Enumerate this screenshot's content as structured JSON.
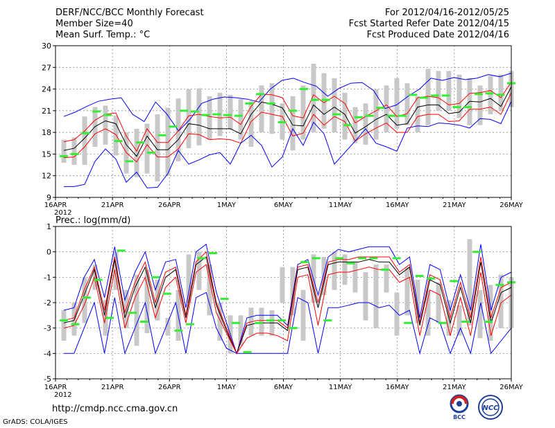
{
  "header": {
    "left": [
      "DERF/NCC/BCC Monthly Forecast",
      "Member Size=40",
      "Mean Surf. Temp.: °C"
    ],
    "right": [
      "For 2012/04/16-2012/05/25",
      "Fcst Started Refer Date 2012/04/15",
      "Fcst Produced Date 2012/04/16"
    ]
  },
  "footer": {
    "url": "http://cmdp.ncc.cma.gov.cn",
    "credit": "GrADS: COLA/IGES"
  },
  "logos": {
    "bcc": "BCC",
    "ncc": "NCC"
  },
  "colors": {
    "envelope": "#0000ff",
    "spread": "#ff0000",
    "mean": "#000000",
    "obs": "#33ee33",
    "box": "#c8c8c8"
  },
  "chart_data": [
    {
      "type": "line",
      "title": "Mean Surf. Temp.: °C",
      "x_ticks": [
        "16APR",
        "21APR",
        "26APR",
        "1MAY",
        "6MAY",
        "11MAY",
        "16MAY",
        "21MAY",
        "26MAY"
      ],
      "x_sublabel": "2012",
      "ylim": [
        9,
        30
      ],
      "y_ticks": [
        9,
        12,
        15,
        18,
        21,
        24,
        27,
        30
      ],
      "series": [
        {
          "name": "max",
          "values": [
            20.2,
            20.8,
            21.6,
            22.3,
            22.6,
            22.8,
            20.5,
            19.5,
            22.2,
            20.5,
            18.2,
            19.8,
            22.0,
            22.6,
            22.9,
            22.8,
            22.6,
            22.2,
            24.0,
            25.2,
            25.5,
            24.9,
            24.4,
            23.0,
            24.1,
            24.8,
            24.9,
            23.8,
            21.3,
            21.8,
            23.0,
            24.0,
            25.5,
            25.2,
            25.6,
            25.3,
            25.5,
            26.0,
            25.7,
            26.2
          ]
        },
        {
          "name": "upper",
          "values": [
            16.7,
            17.0,
            18.2,
            19.7,
            20.5,
            20.7,
            17.5,
            15.4,
            18.5,
            16.6,
            16.6,
            18.2,
            20.3,
            20.5,
            20.2,
            20.0,
            20.1,
            19.1,
            21.6,
            23.3,
            23.2,
            22.8,
            20.3,
            20.0,
            23.2,
            22.1,
            23.0,
            22.0,
            19.3,
            20.2,
            21.0,
            21.8,
            20.2,
            20.6,
            22.8,
            23.0,
            22.8,
            21.8,
            22.0,
            23.4,
            23.5,
            23.8,
            22.8,
            25.0
          ]
        },
        {
          "name": "mean",
          "values": [
            15.5,
            15.8,
            17.2,
            18.8,
            19.6,
            19.2,
            16.3,
            14.7,
            17.5,
            15.6,
            15.6,
            17.0,
            19.2,
            19.0,
            18.5,
            18.5,
            18.5,
            17.8,
            20.5,
            22.2,
            21.9,
            21.4,
            19.0,
            18.9,
            21.8,
            20.5,
            21.5,
            20.5,
            17.9,
            18.8,
            19.8,
            20.5,
            19.0,
            19.2,
            21.5,
            21.8,
            21.8,
            20.6,
            20.8,
            22.3,
            22.2,
            22.7,
            21.6,
            24.3
          ]
        },
        {
          "name": "lower",
          "values": [
            14.5,
            14.6,
            16.0,
            17.8,
            18.5,
            17.7,
            15.2,
            13.9,
            16.3,
            14.6,
            14.6,
            15.7,
            17.8,
            17.7,
            17.0,
            17.1,
            17.0,
            16.5,
            19.5,
            20.8,
            20.5,
            20.2,
            17.5,
            17.9,
            20.5,
            19.0,
            20.2,
            19.5,
            16.8,
            17.8,
            18.6,
            19.3,
            18.0,
            18.0,
            20.2,
            20.5,
            20.5,
            19.5,
            19.6,
            21.2,
            21.2,
            21.5,
            20.5,
            23.5
          ]
        },
        {
          "name": "min",
          "values": [
            10.5,
            10.5,
            10.8,
            14.0,
            15.7,
            14.3,
            11.1,
            12.5,
            10.3,
            10.4,
            12.3,
            15.5,
            13.6,
            14.2,
            14.9,
            15.2,
            13.6,
            16.5,
            17.6,
            16.2,
            13.2,
            14.6,
            18.5,
            16.2,
            19.4,
            17.8,
            13.6,
            15.2,
            16.8,
            18.5,
            16.5,
            16.0,
            15.4,
            18.6,
            18.9,
            18.8,
            19.3,
            19.2,
            19.0,
            18.6,
            19.9,
            19.8,
            19.2,
            22.3
          ]
        },
        {
          "name": "observed",
          "values": [
            14.7,
            15.0,
            17.9,
            20.9,
            20.4,
            16.8,
            14.0,
            16.6,
            15.2,
            17.6,
            18.8,
            21.0,
            20.9,
            20.4,
            20.5,
            20.4,
            20.3,
            22.0,
            23.3,
            22.0,
            19.4,
            21.0,
            24.0,
            22.5,
            22.5,
            20.5,
            19.0,
            20.1,
            20.3,
            21.4,
            20.3,
            20.3,
            23.2,
            22.8,
            23.1,
            23.1,
            21.5,
            21.5,
            23.3,
            23.4,
            23.2,
            24.8
          ]
        }
      ],
      "boxes": [
        [
          13.8,
          17.0
        ],
        [
          13.5,
          17.3
        ],
        [
          13.5,
          20.2
        ],
        [
          16.0,
          21.5
        ],
        [
          16.3,
          21.7
        ],
        [
          14.8,
          20.3
        ],
        [
          12.3,
          18.0
        ],
        [
          11.8,
          18.5
        ],
        [
          12.3,
          19.2
        ],
        [
          11.2,
          20.5
        ],
        [
          12.0,
          21.4
        ],
        [
          14.0,
          22.7
        ],
        [
          15.8,
          24.0
        ],
        [
          16.2,
          24.1
        ],
        [
          17.0,
          23.0
        ],
        [
          17.5,
          23.5
        ],
        [
          18.4,
          23.2
        ],
        [
          17.0,
          22.6
        ],
        [
          16.0,
          22.3
        ],
        [
          18.0,
          24.5
        ],
        [
          17.8,
          24.8
        ],
        [
          17.0,
          22.0
        ],
        [
          15.5,
          23.0
        ],
        [
          17.0,
          24.5
        ],
        [
          18.0,
          27.5
        ],
        [
          18.5,
          26.2
        ],
        [
          18.0,
          25.5
        ],
        [
          17.0,
          23.5
        ],
        [
          16.5,
          21.5
        ],
        [
          16.3,
          22.0
        ],
        [
          17.0,
          24.0
        ],
        [
          18.0,
          24.5
        ],
        [
          18.5,
          25.5
        ],
        [
          19.0,
          24.8
        ],
        [
          18.0,
          23.0
        ],
        [
          19.0,
          26.8
        ],
        [
          21.0,
          26.5
        ],
        [
          21.0,
          26.5
        ],
        [
          20.0,
          26.0
        ],
        [
          19.0,
          25.5
        ],
        [
          19.0,
          24.5
        ],
        [
          20.5,
          25.8
        ],
        [
          21.0,
          26.0
        ],
        [
          21.5,
          26.5
        ]
      ]
    },
    {
      "type": "line",
      "title": "Prec.: log(mm/d)",
      "x_ticks": [
        "16APR",
        "21APR",
        "26APR",
        "1MAY",
        "6MAY",
        "11MAY",
        "16MAY",
        "21MAY",
        "26MAY"
      ],
      "x_sublabel": "2012",
      "ylim": [
        -5,
        1
      ],
      "y_ticks": [
        -5,
        -4,
        -3,
        -2,
        -1,
        0,
        1
      ],
      "series": [
        {
          "name": "max",
          "values": [
            -2.3,
            -2.2,
            -1.0,
            -0.3,
            -1.8,
            0.2,
            -1.9,
            -0.8,
            0.0,
            -1.5,
            -0.4,
            -0.3,
            -2.2,
            0.0,
            0.3,
            -1.6,
            -2.8,
            -4.0,
            -2.6,
            -2.5,
            -2.5,
            -2.5,
            -2.9,
            -0.5,
            -0.3,
            -1.7,
            -0.2,
            0.1,
            0.0,
            0.1,
            0.2,
            0.2,
            0.2,
            -0.5,
            -0.2,
            -2.6,
            -0.5,
            -0.7,
            -2.3,
            -0.9,
            -2.3,
            0.3,
            -2.3,
            -1.0,
            -0.8
          ]
        },
        {
          "name": "upper",
          "values": [
            -2.7,
            -2.6,
            -1.5,
            -0.6,
            -2.3,
            -0.2,
            -2.4,
            -1.2,
            -0.4,
            -2.0,
            -0.8,
            -0.6,
            -2.5,
            -0.4,
            0.0,
            -2.0,
            -3.0,
            -4.0,
            -2.8,
            -2.7,
            -2.7,
            -2.7,
            -3.0,
            -0.6,
            -0.5,
            -2.0,
            -0.4,
            -0.3,
            -0.3,
            -0.2,
            -0.2,
            -0.2,
            -0.2,
            -0.8,
            -0.5,
            -2.8,
            -0.9,
            -1.1,
            -2.6,
            -1.2,
            -2.6,
            -0.2,
            -2.6,
            -1.4,
            -1.2
          ]
        },
        {
          "name": "mean",
          "values": [
            -2.8,
            -2.7,
            -1.7,
            -0.7,
            -2.5,
            -0.3,
            -2.6,
            -1.4,
            -0.6,
            -2.2,
            -1.0,
            -0.7,
            -2.6,
            -0.5,
            -0.2,
            -2.1,
            -3.1,
            -4.0,
            -2.9,
            -2.8,
            -2.8,
            -2.8,
            -3.1,
            -0.7,
            -0.6,
            -2.2,
            -0.5,
            -0.4,
            -0.4,
            -0.4,
            -0.3,
            -0.4,
            -0.4,
            -0.9,
            -0.6,
            -2.9,
            -1.1,
            -1.3,
            -2.8,
            -1.4,
            -2.8,
            -0.4,
            -2.8,
            -1.6,
            -1.4
          ]
        },
        {
          "name": "lower",
          "values": [
            -3.0,
            -2.9,
            -2.1,
            -1.0,
            -2.8,
            -0.7,
            -3.0,
            -1.8,
            -1.0,
            -2.6,
            -1.4,
            -1.0,
            -2.8,
            -0.8,
            -0.5,
            -2.4,
            -3.2,
            -4.0,
            -3.4,
            -3.2,
            -3.2,
            -3.3,
            -3.5,
            -1.0,
            -0.9,
            -2.9,
            -0.9,
            -0.8,
            -0.8,
            -0.7,
            -0.6,
            -0.7,
            -0.7,
            -1.2,
            -1.0,
            -3.3,
            -1.5,
            -1.7,
            -3.3,
            -1.8,
            -3.3,
            -0.8,
            -3.3,
            -2.0,
            -1.7
          ]
        },
        {
          "name": "min",
          "values": [
            -4.0,
            -4.0,
            -3.0,
            -2.0,
            -4.0,
            -1.8,
            -4.0,
            -3.0,
            -2.0,
            -4.0,
            -3.0,
            -2.0,
            -4.0,
            -1.8,
            -1.6,
            -3.0,
            -3.8,
            -4.0,
            -4.0,
            -4.0,
            -4.0,
            -4.0,
            -4.0,
            -1.8,
            -2.0,
            -4.0,
            -2.2,
            -2.2,
            -2.1,
            -2.0,
            -2.0,
            -2.2,
            -2.1,
            -2.5,
            -2.3,
            -4.0,
            -2.6,
            -2.8,
            -4.0,
            -3.0,
            -4.0,
            -2.0,
            -4.0,
            -3.5,
            -3.0
          ]
        },
        {
          "name": "observed",
          "values": [
            -2.7,
            -2.85,
            -1.8,
            -1.1,
            -2.6,
            0.05,
            -2.4,
            -2.75,
            -1.0,
            -1.65,
            -3.1,
            -2.85,
            -0.25,
            -0.05,
            -1.85,
            -2.8,
            -3.95,
            -2.8,
            -2.7,
            -2.7,
            -3.0,
            -0.4,
            -0.25,
            -2.7,
            -0.25,
            -0.45,
            -0.25,
            -0.25,
            -0.7,
            -0.25,
            -2.8,
            -0.95,
            -1.05,
            -2.8,
            -1.15,
            -2.75,
            0.0,
            -2.75,
            -1.3,
            -1.2
          ]
        }
      ],
      "boxes": [
        [
          -3.5,
          -2.3
        ],
        [
          -3.3,
          -2.0
        ],
        [
          -2.8,
          -1.0
        ],
        [
          -1.5,
          -0.5
        ],
        [
          -3.3,
          -1.9
        ],
        [
          -1.5,
          0.0
        ],
        [
          -3.0,
          -1.5
        ],
        [
          -3.7,
          -0.9
        ],
        [
          -3.2,
          -0.7
        ],
        [
          -2.7,
          -1.1
        ],
        [
          -3.3,
          -2.6
        ],
        [
          -3.5,
          -1.5
        ],
        [
          -2.0,
          -0.1
        ],
        [
          -1.5,
          0.0
        ],
        [
          -2.5,
          -0.5
        ],
        [
          -3.5,
          -2.0
        ],
        [
          -4.0,
          -2.5
        ],
        [
          -3.7,
          -2.5
        ],
        [
          -3.3,
          -2.2
        ],
        [
          -3.3,
          -2.2
        ],
        [
          -3.3,
          -2.3
        ],
        [
          -2.0,
          -0.6
        ],
        [
          -2.5,
          -0.6
        ],
        [
          -3.5,
          -1.5
        ],
        [
          -2.0,
          -0.1
        ],
        [
          -1.7,
          -0.2
        ],
        [
          -1.5,
          0.0
        ],
        [
          -1.3,
          -0.1
        ],
        [
          -1.6,
          -0.4
        ],
        [
          -2.7,
          -0.8
        ],
        [
          -3.0,
          -0.5
        ],
        [
          -1.6,
          -0.5
        ],
        [
          -3.3,
          -1.6
        ],
        [
          -2.5,
          -0.6
        ],
        [
          -2.8,
          -1.1
        ],
        [
          -3.3,
          -1.5
        ],
        [
          -2.8,
          -1.2
        ],
        [
          -3.3,
          -1.9
        ],
        [
          -3.3,
          -2.1
        ],
        [
          -2.9,
          0.5
        ],
        [
          -3.4,
          -1.5
        ],
        [
          -3.5,
          -1.3
        ],
        [
          -3.0,
          -0.9
        ],
        [
          -3.0,
          -1.0
        ]
      ]
    }
  ]
}
